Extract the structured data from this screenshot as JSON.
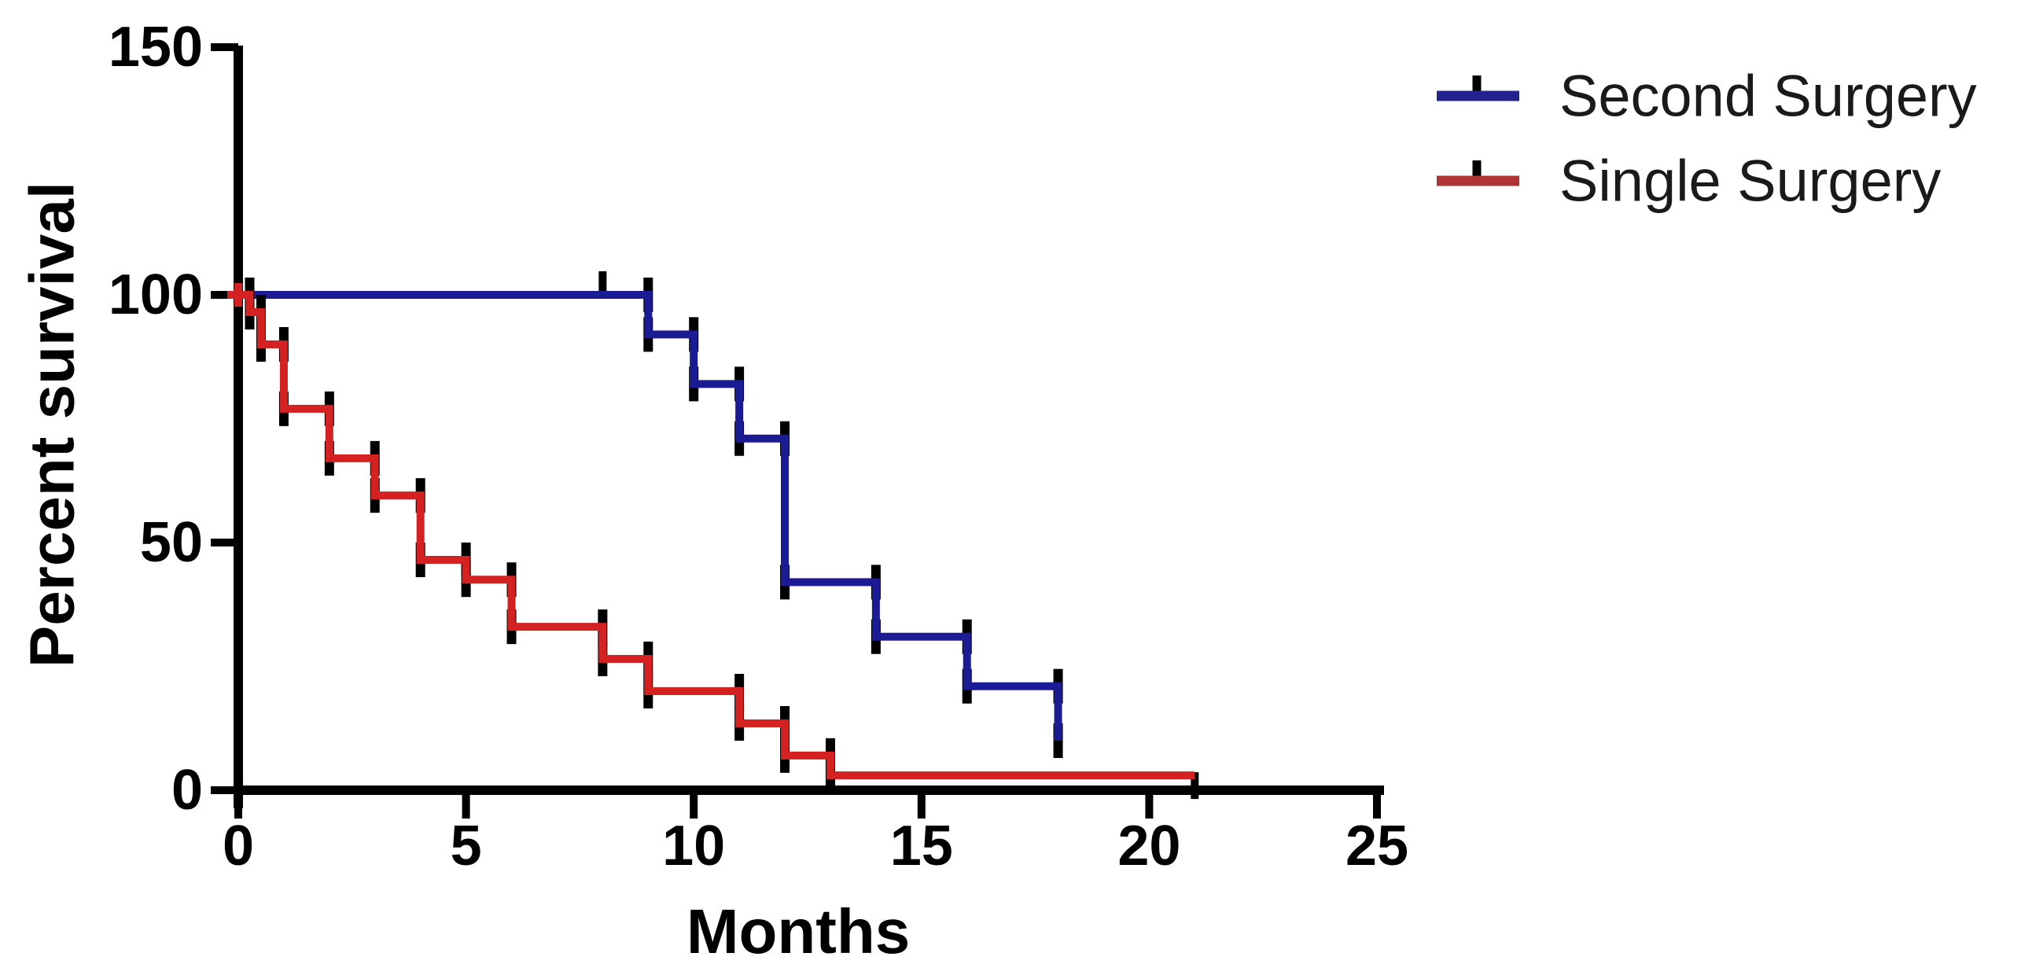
{
  "figure": {
    "background": "#ffffff",
    "text_color": "#000000"
  },
  "chart_data": {
    "type": "line",
    "subtype": "kaplan_meier_step_survival",
    "title": "",
    "xlabel": "Months",
    "ylabel": "Percent survival",
    "xlim": [
      0,
      25
    ],
    "ylim": [
      0,
      150
    ],
    "xticks": [
      "0",
      "5",
      "10",
      "15",
      "20",
      "25"
    ],
    "xtick_values": [
      0,
      5,
      10,
      15,
      20,
      25
    ],
    "yticks": [
      "0",
      "50",
      "100",
      "150"
    ],
    "ytick_values": [
      0,
      50,
      100,
      150
    ],
    "grid": false,
    "legend_position": "top-right",
    "axis_color": "#000000",
    "event_tick_color": "#000000",
    "series": [
      {
        "name": "Second Surgery",
        "color": "#1b1b94",
        "legend_color": "#23238f",
        "points": [
          [
            0,
            100
          ],
          [
            9,
            100
          ],
          [
            9,
            92
          ],
          [
            10,
            92
          ],
          [
            10,
            82
          ],
          [
            11,
            82
          ],
          [
            11,
            71
          ],
          [
            12,
            71
          ],
          [
            12,
            42
          ],
          [
            14,
            42
          ],
          [
            14,
            31
          ],
          [
            16,
            31
          ],
          [
            16,
            21
          ],
          [
            18,
            21
          ],
          [
            18,
            10
          ]
        ],
        "censor_marks": [
          {
            "x": 8,
            "y": 100,
            "dir": "up"
          }
        ],
        "origin_marker": false
      },
      {
        "name": "Single Surgery",
        "color": "#d42222",
        "legend_color": "#b13434",
        "points": [
          [
            0,
            100
          ],
          [
            0.25,
            100
          ],
          [
            0.25,
            96.5
          ],
          [
            0.5,
            96.5
          ],
          [
            0.5,
            90
          ],
          [
            1,
            90
          ],
          [
            1,
            77
          ],
          [
            2,
            77
          ],
          [
            2,
            67
          ],
          [
            3,
            67
          ],
          [
            3,
            59.5
          ],
          [
            4,
            59.5
          ],
          [
            4,
            46.5
          ],
          [
            5,
            46.5
          ],
          [
            5,
            42.5
          ],
          [
            6,
            42.5
          ],
          [
            6,
            33
          ],
          [
            8,
            33
          ],
          [
            8,
            26.5
          ],
          [
            9,
            26.5
          ],
          [
            9,
            20
          ],
          [
            11,
            20
          ],
          [
            11,
            13.5
          ],
          [
            12,
            13.5
          ],
          [
            12,
            7
          ],
          [
            13,
            7
          ],
          [
            13,
            3
          ],
          [
            21,
            3
          ]
        ],
        "censor_marks": [
          {
            "x": 21,
            "y": 3,
            "dir": "down"
          }
        ],
        "origin_marker": true
      }
    ]
  }
}
